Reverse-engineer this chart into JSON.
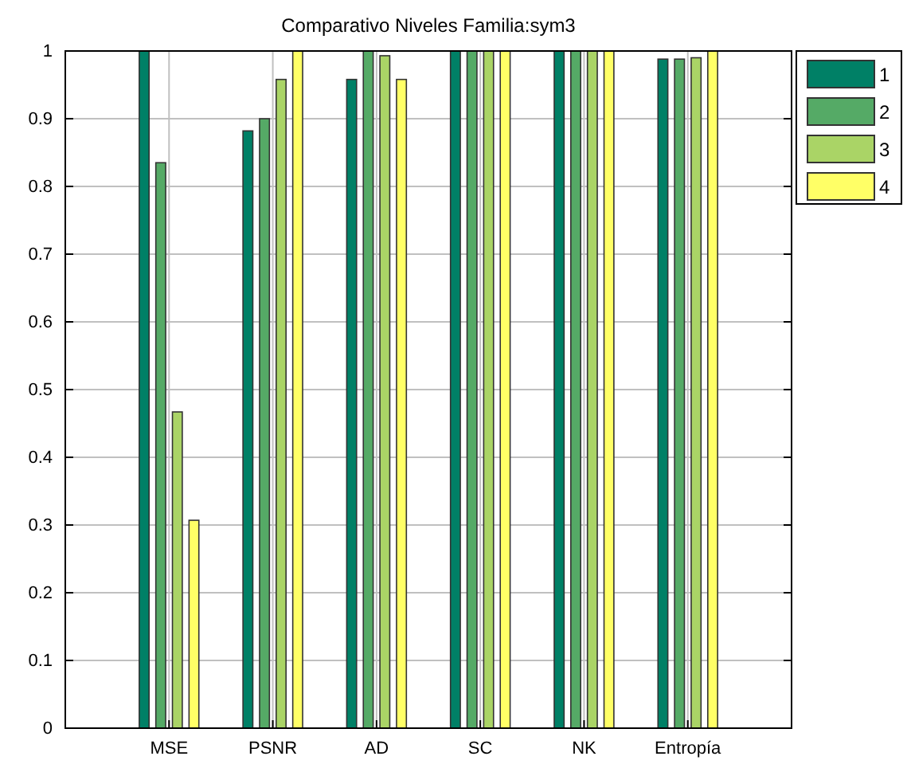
{
  "chart_data": {
    "type": "bar",
    "title": "Comparativo Niveles Familia:sym3",
    "categories": [
      "MSE",
      "PSNR",
      "AD",
      "SC",
      "NK",
      "Entropía"
    ],
    "series": [
      {
        "name": "1",
        "color": "#008066",
        "values": [
          1,
          0.882,
          0.958,
          1,
          1,
          0.988
        ]
      },
      {
        "name": "2",
        "color": "#55aa66",
        "values": [
          0.835,
          0.9,
          1,
          1,
          1,
          0.988
        ]
      },
      {
        "name": "3",
        "color": "#aad466",
        "values": [
          0.467,
          0.958,
          0.993,
          1,
          1,
          0.99
        ]
      },
      {
        "name": "4",
        "color": "#ffff66",
        "values": [
          0.307,
          1,
          0.958,
          1,
          1,
          1
        ]
      }
    ],
    "ylim": [
      0,
      1
    ],
    "yticks": [
      0,
      0.1,
      0.2,
      0.3,
      0.4,
      0.5,
      0.6,
      0.7,
      0.8,
      0.9,
      1
    ],
    "grid": true,
    "legend": "top right"
  }
}
